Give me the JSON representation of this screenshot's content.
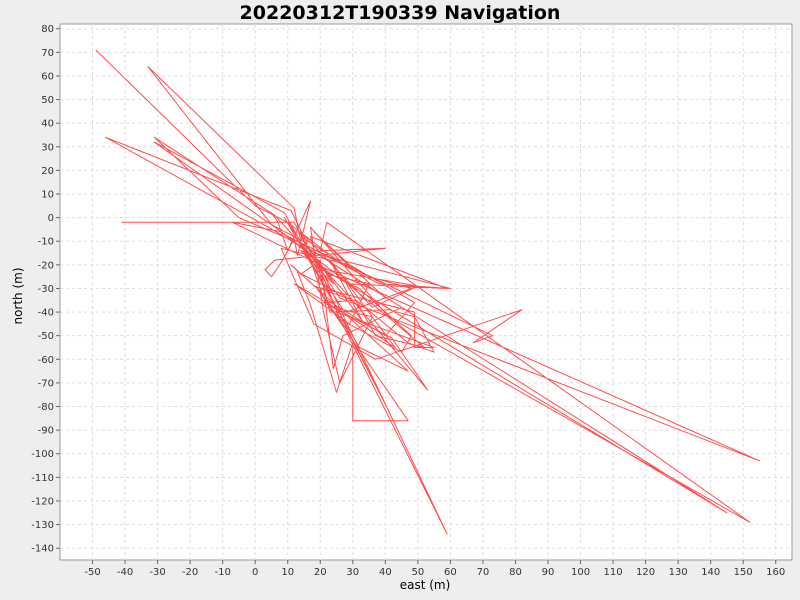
{
  "chart_data": {
    "type": "line",
    "title": "20220312T190339 Navigation",
    "xlabel": "east (m)",
    "ylabel": "north (m)",
    "xlim": [
      -60,
      165
    ],
    "ylim": [
      -145,
      82
    ],
    "xticks": [
      -50,
      -40,
      -30,
      -20,
      -10,
      0,
      10,
      20,
      30,
      40,
      50,
      60,
      70,
      80,
      90,
      100,
      110,
      120,
      130,
      140,
      150,
      160
    ],
    "yticks": [
      80,
      70,
      60,
      50,
      40,
      30,
      20,
      10,
      0,
      -10,
      -20,
      -30,
      -40,
      -50,
      -60,
      -70,
      -80,
      -90,
      -100,
      -110,
      -120,
      -130,
      -140
    ],
    "grid": true,
    "legend": "none",
    "line_color": "#ff4d4d",
    "background_color": "#ffffff",
    "series": [
      {
        "x": [
          -49,
          0,
          10,
          14,
          12,
          -33,
          5,
          16,
          11,
          -46,
          4,
          15,
          9,
          -31,
          7,
          18,
          6,
          -31,
          -5,
          12,
          8,
          -7,
          20,
          24,
          14,
          17,
          26,
          155,
          19,
          12,
          -41,
          10,
          25,
          35,
          48,
          28,
          40,
          18,
          30,
          14,
          22,
          35,
          29,
          12,
          27,
          43,
          23,
          33,
          16,
          38,
          60,
          18,
          26,
          45,
          48,
          32,
          19,
          25,
          50,
          36,
          14,
          21,
          40,
          49,
          29,
          8,
          18,
          37,
          82,
          67,
          73,
          10,
          24,
          39,
          52,
          37,
          28,
          59,
          17,
          23,
          41,
          49,
          55,
          47,
          31,
          21,
          42,
          53,
          30,
          13,
          17,
          25,
          30,
          30,
          47,
          19,
          28,
          40,
          22,
          9,
          32,
          47,
          11,
          14,
          20,
          24,
          27,
          45,
          13,
          30,
          18,
          49,
          49,
          55,
          25,
          59,
          20,
          145,
          14,
          27,
          36,
          26,
          21,
          17,
          41,
          152,
          22,
          20,
          40,
          6,
          3,
          5,
          8,
          12,
          13,
          17,
          10,
          9,
          7,
          5
        ],
        "y": [
          71,
          5,
          -2,
          -10,
          4,
          64,
          -3,
          -11,
          3,
          34,
          -4,
          -13,
          2,
          32,
          -5,
          -17,
          1,
          34,
          0,
          -10,
          -6,
          -2,
          -20,
          -28,
          -14,
          -16,
          -34,
          -103,
          -20,
          -2,
          -2,
          -2,
          -18,
          -25,
          -30,
          -40,
          -34,
          -6,
          -22,
          -8,
          -24,
          -28,
          -45,
          -28,
          -40,
          -55,
          -18,
          -44,
          -12,
          -28,
          -30,
          -15,
          -43,
          -57,
          -50,
          -30,
          -21,
          -23,
          -29,
          -38,
          -6,
          -34,
          -50,
          -36,
          -20,
          -13,
          -45,
          -60,
          -39,
          -53,
          -50,
          -8,
          -23,
          -40,
          -55,
          -50,
          -28,
          -30,
          -8,
          -40,
          -39,
          -42,
          -57,
          -53,
          -35,
          -36,
          -51,
          -73,
          -35,
          -23,
          -37,
          -74,
          -53,
          -86,
          -86,
          -30,
          -47,
          -79,
          -30,
          0,
          -55,
          -65,
          -20,
          -24,
          -18,
          -64,
          -50,
          -38,
          -10,
          -35,
          -29,
          -40,
          -55,
          -55,
          -40,
          -134,
          -21,
          -125,
          -11,
          -39,
          -42,
          -70,
          -40,
          -4,
          -42,
          -129,
          -2,
          -14,
          -13,
          -18,
          -22,
          -25,
          -19,
          -9,
          -16,
          7,
          -14,
          -10,
          -2,
          2
        ]
      }
    ]
  }
}
